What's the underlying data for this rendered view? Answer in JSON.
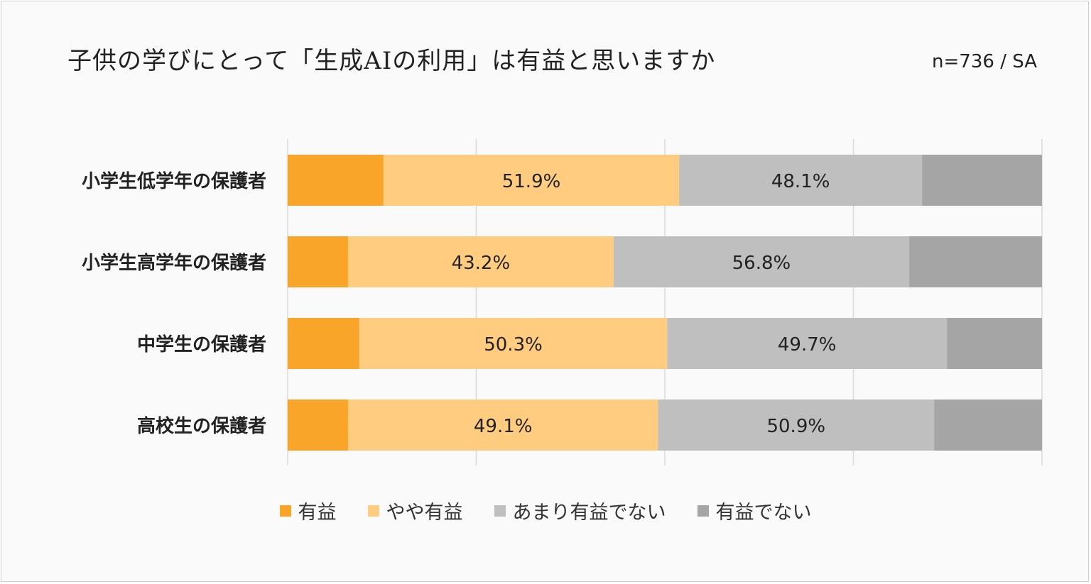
{
  "chart_data": {
    "type": "bar",
    "orientation": "horizontal",
    "stacked": true,
    "percent_stacked": true,
    "title": "子供の学びにとって「生成AIの利用」は有益と思いますか",
    "sample_note": "n=736 / SA",
    "categories": [
      "小学生低学年の保護者",
      "小学生高学年の保護者",
      "中学生の保護者",
      "高校生の保護者"
    ],
    "series": [
      {
        "name": "有益",
        "values": [
          12.7,
          8.0,
          9.5,
          8.0
        ],
        "color": "#f9a52a"
      },
      {
        "name": "やや有益",
        "values": [
          39.2,
          35.2,
          40.8,
          41.1
        ],
        "color": "#ffcc80"
      },
      {
        "name": "あまり有益でない",
        "values": [
          32.2,
          39.2,
          37.1,
          36.6
        ],
        "color": "#bfbfbf"
      },
      {
        "name": "有益でない",
        "values": [
          15.9,
          17.6,
          12.6,
          14.3
        ],
        "color": "#a5a5a5"
      }
    ],
    "group_labels": {
      "positive": [
        "51.9%",
        "43.2%",
        "50.3%",
        "49.1%"
      ],
      "negative": [
        "48.1%",
        "56.8%",
        "49.7%",
        "50.9%"
      ]
    },
    "xlim": [
      0,
      100
    ],
    "grid": true,
    "legend_position": "bottom"
  }
}
